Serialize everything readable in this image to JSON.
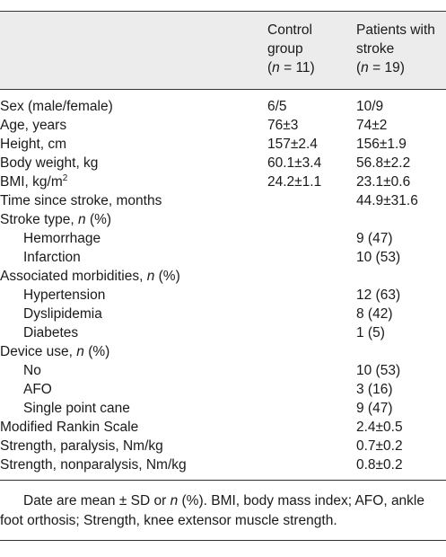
{
  "header": {
    "col1": [
      "Control",
      "group",
      "(n = 11)"
    ],
    "col2": [
      "Patients with",
      "stroke",
      "(n = 19)"
    ],
    "n_letter": "n",
    "col1_n_prefix": "(",
    "col1_n_suffix": " = 11)",
    "col2_n_suffix": " = 19)"
  },
  "rows": [
    {
      "label": "Sex (male/female)",
      "control": "6/5",
      "stroke": "10/9"
    },
    {
      "label": "Age, years",
      "control": "76±3",
      "stroke": "74±2"
    },
    {
      "label": "Height, cm",
      "control": "157±2.4",
      "stroke": "156±1.9"
    },
    {
      "label": "Body weight, kg",
      "control": "60.1±3.4",
      "stroke": "56.8±2.2"
    },
    {
      "label": "BMI, kg/m",
      "label_sup": "2",
      "control": "24.2±1.1",
      "stroke": "23.1±0.6"
    },
    {
      "label": "Time since stroke, months",
      "control": "",
      "stroke": "44.9±31.6"
    },
    {
      "label_prefix": "Stroke type, ",
      "label_italic": "n",
      "label_suffix": " (%)",
      "control": "",
      "stroke": ""
    },
    {
      "label": "Hemorrhage",
      "control": "",
      "stroke": "9 (47)"
    },
    {
      "label": "Infarction",
      "control": "",
      "stroke": "10 (53)"
    },
    {
      "label_prefix": "Associated morbidities, ",
      "label_italic": "n",
      "label_suffix": " (%)",
      "control": "",
      "stroke": ""
    },
    {
      "label": "Hypertension",
      "control": "",
      "stroke": "12 (63)"
    },
    {
      "label": "Dyslipidemia",
      "control": "",
      "stroke": "8 (42)"
    },
    {
      "label": "Diabetes",
      "control": "",
      "stroke": "1 (5)"
    },
    {
      "label_prefix": "Device use, ",
      "label_italic": "n",
      "label_suffix": " (%)",
      "control": "",
      "stroke": ""
    },
    {
      "label": "No",
      "control": "",
      "stroke": "10 (53)"
    },
    {
      "label": "AFO",
      "control": "",
      "stroke": "3 (16)"
    },
    {
      "label": "Single point cane",
      "control": "",
      "stroke": "9 (47)"
    },
    {
      "label": "Modified Rankin Scale",
      "control": "",
      "stroke": "2.4±0.5"
    },
    {
      "label": "Strength, paralysis, Nm/kg",
      "control": "",
      "stroke": "0.7±0.2"
    },
    {
      "label": "Strength, nonparalysis, Nm/kg",
      "control": "",
      "stroke": "0.8±0.2"
    }
  ],
  "footnote": {
    "line1": "Date are mean ± SD or n (%). BMI, body mass index; AFO, ankle",
    "line1_prefix": "Date are mean ± SD or ",
    "line1_italic": "n",
    "line1_suffix": " (%). BMI, body mass index; AFO, ankle",
    "line2": "foot orthosis; Strength, knee extensor muscle strength."
  }
}
